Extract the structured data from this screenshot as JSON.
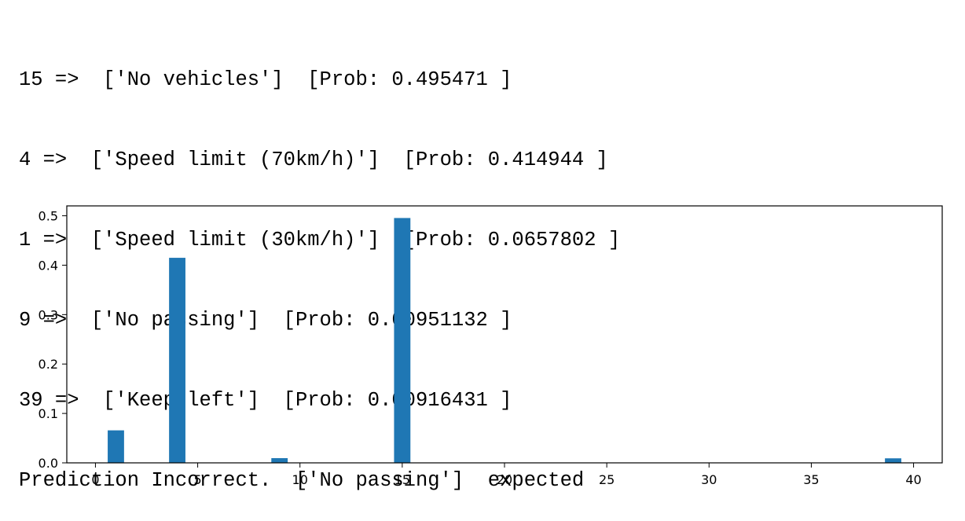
{
  "output": {
    "lines": [
      "15 =>  ['No vehicles']  [Prob: 0.495471 ]",
      "4 =>  ['Speed limit (70km/h)']  [Prob: 0.414944 ]",
      "1 =>  ['Speed limit (30km/h)']  [Prob: 0.0657802 ]",
      "9 =>  ['No passing']  [Prob: 0.00951132 ]",
      "39 =>  ['Keep left']  [Prob: 0.00916431 ]",
      "Prediction Incorrect.  ['No passing']  expected"
    ]
  },
  "chart_data": {
    "type": "bar",
    "x": [
      1,
      4,
      9,
      15,
      39
    ],
    "values": [
      0.0657802,
      0.414944,
      0.00951132,
      0.495471,
      0.00916431
    ],
    "bar_width": 0.8,
    "color": "#1f77b4",
    "title": "",
    "xlabel": "",
    "ylabel": "",
    "xlim": [
      -1.4,
      41.4
    ],
    "ylim": [
      0,
      0.52
    ],
    "xticks": [
      0,
      5,
      10,
      15,
      20,
      25,
      30,
      35,
      40
    ],
    "yticks": [
      0.0,
      0.1,
      0.2,
      0.3,
      0.4,
      0.5
    ],
    "xtick_labels": [
      "0",
      "5",
      "10",
      "15",
      "20",
      "25",
      "30",
      "35",
      "40"
    ],
    "ytick_labels": [
      "0.0",
      "0.1",
      "0.2",
      "0.3",
      "0.4",
      "0.5"
    ],
    "grid": false,
    "legend": false
  }
}
